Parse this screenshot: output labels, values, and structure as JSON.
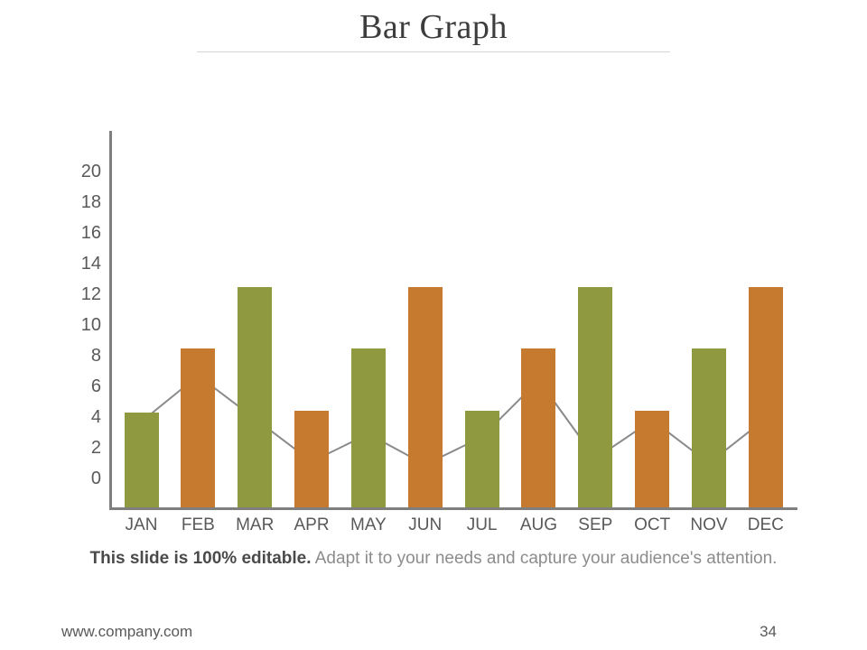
{
  "slide": {
    "title": "Bar Graph",
    "caption_bold": "This slide is 100% editable.",
    "caption_rest": " Adapt it to your needs and capture your audience's attention.",
    "footer_url": "www.company.com",
    "page_number": "34"
  },
  "chart_data": {
    "type": "bar",
    "title": "Bar Graph",
    "categories": [
      "JAN",
      "FEB",
      "MAR",
      "APR",
      "MAY",
      "JUN",
      "JUL",
      "AUG",
      "SEP",
      "OCT",
      "NOV",
      "DEC"
    ],
    "series": [
      {
        "name": "monthly-bars",
        "type": "bar",
        "values": [
          4.3,
          8.5,
          12.5,
          4.4,
          8.5,
          12.5,
          4.4,
          8.5,
          12.5,
          4.4,
          8.5,
          12.5
        ]
      },
      {
        "name": "trend-line",
        "type": "line",
        "values": [
          3.7,
          6.7,
          3.9,
          1.1,
          2.9,
          0.9,
          2.7,
          6.4,
          1.3,
          3.8,
          1.0,
          3.9
        ]
      }
    ],
    "y_ticks": [
      20,
      18,
      16,
      14,
      12,
      10,
      8,
      6,
      4,
      2,
      0
    ],
    "ylim": [
      0,
      22
    ],
    "xlabel": "",
    "ylabel": "",
    "grid": false,
    "legend_position": "none",
    "colors": {
      "bar_alternate": [
        "#8F9A40",
        "#C57A2F"
      ],
      "line": "#8A8A8A",
      "marker_fill": "#D9D9D9",
      "marker_stroke": "#8A8A8A",
      "axis": "#7F7F7F",
      "tick_label": "#595959"
    }
  }
}
